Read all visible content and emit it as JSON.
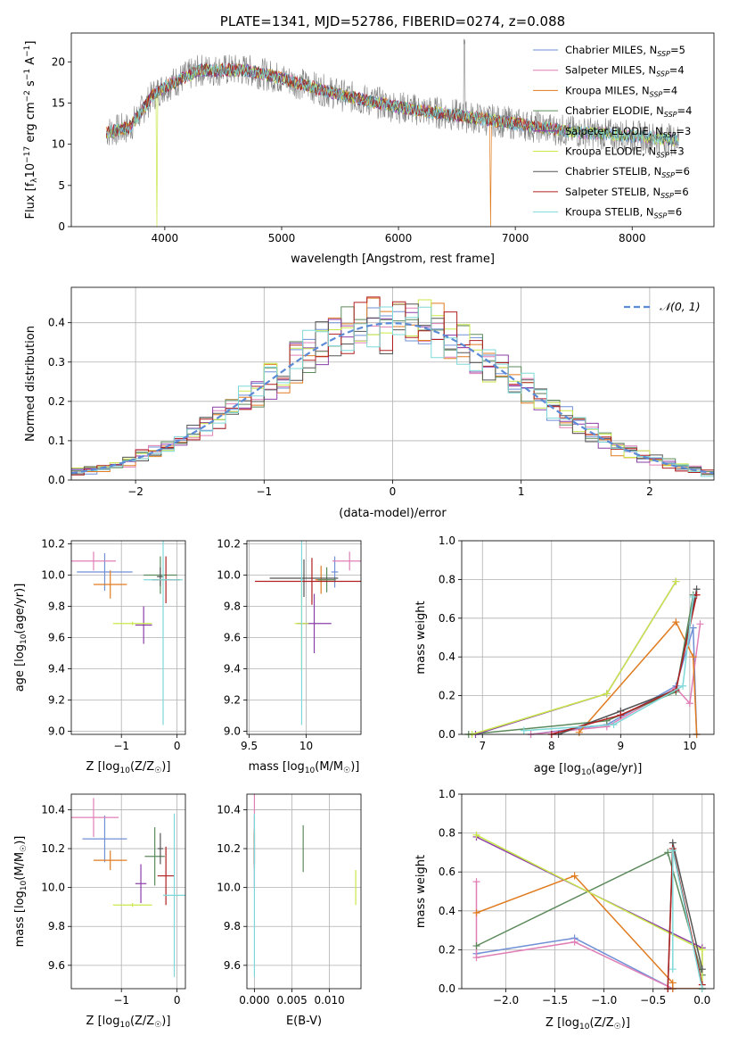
{
  "series_colors": [
    "#6f8fd6",
    "#e07fb6",
    "#e07b20",
    "#5c8a5c",
    "#8b3fa8",
    "#c8e84a",
    "#555555",
    "#b02020",
    "#7fd8d8"
  ],
  "chart_data": [
    {
      "id": "spectrum",
      "type": "line",
      "title": "PLATE=1341, MJD=52786, FIBERID=0274, z=0.088",
      "xlabel": "wavelength [Angstrom, rest frame]",
      "ylabel_parts": [
        "Flux [f",
        "λ",
        "10",
        "−17",
        " erg cm",
        "−2",
        " s",
        "−1",
        " A",
        "−1",
        "]"
      ],
      "xlim": [
        3200,
        8700
      ],
      "ylim": [
        0,
        23.5
      ],
      "xticks": [
        4000,
        5000,
        6000,
        7000,
        8000
      ],
      "yticks": [
        0,
        5,
        10,
        15,
        20
      ],
      "data_range": [
        3500,
        8400
      ],
      "grid": false,
      "legend_position": "top-right",
      "series": [
        {
          "label": "Chabrier MILES, N",
          "sub": "SSP",
          "suffix": "=5"
        },
        {
          "label": "Salpeter MILES, N",
          "sub": "SSP",
          "suffix": "=4"
        },
        {
          "label": "Kroupa MILES, N",
          "sub": "SSP",
          "suffix": "=4"
        },
        {
          "label": "Chabrier ELODIE, N",
          "sub": "SSP",
          "suffix": "=4"
        },
        {
          "label": "Salpeter ELODIE, N",
          "sub": "SSP",
          "suffix": "=3"
        },
        {
          "label": "Kroupa ELODIE, N",
          "sub": "SSP",
          "suffix": "=3"
        },
        {
          "label": "Chabrier STELIB, N",
          "sub": "SSP",
          "suffix": "=6"
        },
        {
          "label": "Salpeter STELIB, N",
          "sub": "SSP",
          "suffix": "=6"
        },
        {
          "label": "Kroupa STELIB, N",
          "sub": "SSP",
          "suffix": "=6"
        }
      ],
      "continuum": [
        [
          3500,
          11.5
        ],
        [
          3700,
          12.0
        ],
        [
          3900,
          16.0
        ],
        [
          4000,
          17.0
        ],
        [
          4300,
          19.0
        ],
        [
          4700,
          19.0
        ],
        [
          5000,
          18.0
        ],
        [
          5500,
          16.0
        ],
        [
          6000,
          14.5
        ],
        [
          6500,
          13.5
        ],
        [
          7000,
          12.5
        ],
        [
          7500,
          11.5
        ],
        [
          8000,
          11.0
        ],
        [
          8400,
          10.5
        ]
      ]
    },
    {
      "id": "residuals",
      "type": "line",
      "xlabel": "(data-model)/error",
      "ylabel": "Normed distribution",
      "xlim": [
        -2.5,
        2.5
      ],
      "ylim": [
        0,
        0.49
      ],
      "xticks": [
        -2,
        -1,
        0,
        1,
        2
      ],
      "yticks": [
        0.0,
        0.1,
        0.2,
        0.3,
        0.4
      ],
      "grid": true,
      "legend_position": "top-right",
      "legend": "𝒩(0, 1)",
      "bin_width": 0.1
    },
    {
      "id": "age-vs-z",
      "type": "scatter",
      "xlabel": "Z [log10(Z/Z☉)]",
      "xlabel_parts": [
        "Z [log",
        "10",
        "(Z/Z",
        "☉",
        ")]"
      ],
      "ylabel_parts": [
        "age  [log",
        "10",
        "(age/yr)]"
      ],
      "xlim": [
        -1.9,
        0.15
      ],
      "ylim": [
        8.98,
        10.22
      ],
      "xticks": [
        -1,
        0
      ],
      "yticks": [
        9.0,
        9.2,
        9.4,
        9.6,
        9.8,
        10.0,
        10.2
      ],
      "grid": true,
      "points": [
        {
          "x": -1.3,
          "y": 10.02,
          "xerr": 0.5,
          "yerr": 0.12
        },
        {
          "x": -1.5,
          "y": 10.09,
          "xerr": 0.4,
          "yerr": 0.06
        },
        {
          "x": -1.2,
          "y": 9.94,
          "xerr": 0.3,
          "yerr": 0.09
        },
        {
          "x": -0.3,
          "y": 10.0,
          "xerr": 0.3,
          "yerr": 0.12
        },
        {
          "x": -0.6,
          "y": 9.68,
          "xerr": 0.15,
          "yerr": 0.12
        },
        {
          "x": -0.8,
          "y": 9.69,
          "xerr": 0.35,
          "yerr": 0.01
        },
        {
          "x": -0.3,
          "y": 9.99,
          "xerr": 0.06,
          "yerr": 0.06
        },
        {
          "x": -0.2,
          "y": 9.97,
          "xerr": 0.25,
          "yerr": 0.15
        },
        {
          "x": -0.25,
          "y": 9.97,
          "xerr": 0.35,
          "yerr": 0.93
        }
      ]
    },
    {
      "id": "age-vs-mass",
      "type": "scatter",
      "xlabel_parts": [
        "mass [log",
        "10",
        "(M/M",
        "☉",
        ")]"
      ],
      "xlim": [
        9.48,
        10.48
      ],
      "ylim": [
        8.98,
        10.22
      ],
      "xticks": [
        9.5,
        10.0
      ],
      "yticks": [
        9.0,
        9.2,
        9.4,
        9.6,
        9.8,
        10.0,
        10.2
      ],
      "grid": true,
      "points": [
        {
          "x": 10.25,
          "y": 10.02,
          "xerr": 0.03,
          "yerr": 0.1
        },
        {
          "x": 10.38,
          "y": 10.09,
          "xerr": 0.15,
          "yerr": 0.06
        },
        {
          "x": 10.13,
          "y": 9.97,
          "xerr": 0.05,
          "yerr": 0.09
        },
        {
          "x": 10.18,
          "y": 9.97,
          "xerr": 0.08,
          "yerr": 0.08
        },
        {
          "x": 10.07,
          "y": 9.69,
          "xerr": 0.15,
          "yerr": 0.19
        },
        {
          "x": 9.96,
          "y": 9.69,
          "xerr": 0.06,
          "yerr": 0.3
        },
        {
          "x": 9.98,
          "y": 9.98,
          "xerr": 0.3,
          "yerr": 0.12
        },
        {
          "x": 10.05,
          "y": 9.96,
          "xerr": 0.5,
          "yerr": 0.15
        },
        {
          "x": 9.96,
          "y": 9.97,
          "xerr": 0.01,
          "yerr": 0.93
        }
      ]
    },
    {
      "id": "weight-vs-age",
      "type": "line",
      "xlabel_parts": [
        "age  [log",
        "10",
        "(age/yr)]"
      ],
      "ylabel": "mass weight",
      "xlim": [
        6.7,
        10.35
      ],
      "ylim": [
        0,
        1.0
      ],
      "xticks": [
        7,
        8,
        9,
        10
      ],
      "yticks": [
        0.0,
        0.2,
        0.4,
        0.6,
        0.8,
        1.0
      ],
      "grid": true,
      "series": [
        {
          "x": [
            7.7,
            8.8,
            9.8,
            10.05,
            10.1
          ],
          "y": [
            0.0,
            0.05,
            0.25,
            0.55,
            0.0
          ]
        },
        {
          "x": [
            7.7,
            8.8,
            9.8,
            10.0,
            10.15
          ],
          "y": [
            0.0,
            0.04,
            0.24,
            0.16,
            0.57
          ]
        },
        {
          "x": [
            8.4,
            9.8,
            10.05,
            10.1
          ],
          "y": [
            0.01,
            0.58,
            0.4,
            0.0
          ]
        },
        {
          "x": [
            6.8,
            8.8,
            9.8,
            10.05
          ],
          "y": [
            0.0,
            0.07,
            0.22,
            0.72
          ]
        },
        {
          "x": [
            6.9,
            8.8,
            9.8
          ],
          "y": [
            0.0,
            0.21,
            0.79
          ]
        },
        {
          "x": [
            6.85,
            8.8,
            9.8
          ],
          "y": [
            0.0,
            0.21,
            0.79
          ]
        },
        {
          "x": [
            8.1,
            9.0,
            9.8,
            10.1
          ],
          "y": [
            0.0,
            0.12,
            0.23,
            0.75
          ]
        },
        {
          "x": [
            8.0,
            9.0,
            9.8,
            10.1
          ],
          "y": [
            0.0,
            0.1,
            0.23,
            0.72
          ]
        },
        {
          "x": [
            7.6,
            8.9,
            9.9,
            10.05
          ],
          "y": [
            0.02,
            0.05,
            0.25,
            0.71
          ]
        }
      ]
    },
    {
      "id": "mass-vs-z",
      "type": "scatter",
      "xlabel_parts": [
        "Z [log",
        "10",
        "(Z/Z",
        "☉",
        ")]"
      ],
      "ylabel_parts": [
        "mass [log",
        "10",
        "(M/M",
        "☉",
        ")]"
      ],
      "xlim": [
        -1.9,
        0.15
      ],
      "ylim": [
        9.48,
        10.48
      ],
      "xticks": [
        -1,
        0
      ],
      "yticks": [
        9.6,
        9.8,
        10.0,
        10.2,
        10.4
      ],
      "grid": true,
      "points": [
        {
          "x": -1.3,
          "y": 10.25,
          "xerr": 0.4,
          "yerr": 0.12
        },
        {
          "x": -1.5,
          "y": 10.36,
          "xerr": 0.45,
          "yerr": 0.1
        },
        {
          "x": -1.2,
          "y": 10.14,
          "xerr": 0.3,
          "yerr": 0.05
        },
        {
          "x": -0.4,
          "y": 10.16,
          "xerr": 0.18,
          "yerr": 0.15
        },
        {
          "x": -0.65,
          "y": 10.02,
          "xerr": 0.1,
          "yerr": 0.1
        },
        {
          "x": -0.8,
          "y": 9.91,
          "xerr": 0.35,
          "yerr": 0.01
        },
        {
          "x": -0.3,
          "y": 10.2,
          "xerr": 0.05,
          "yerr": 0.08
        },
        {
          "x": -0.2,
          "y": 10.06,
          "xerr": 0.15,
          "yerr": 0.15
        },
        {
          "x": -0.05,
          "y": 9.96,
          "xerr": 0.2,
          "yerr": 0.42
        }
      ]
    },
    {
      "id": "mass-vs-ebv",
      "type": "scatter",
      "xlabel": "E(B-V)",
      "xlim": [
        -0.001,
        0.0142
      ],
      "ylim": [
        9.48,
        10.48
      ],
      "xticks": [
        0.0,
        0.005,
        0.01
      ],
      "tick_labels": [
        "0.000",
        "0.005",
        "0.010"
      ],
      "yticks": [
        9.6,
        9.8,
        10.0,
        10.2,
        10.4
      ],
      "grid": true,
      "points": [
        {
          "x": 0.0,
          "y": 10.25,
          "yerr": 0.12
        },
        {
          "x": 0.0,
          "y": 10.36,
          "yerr": 0.12
        },
        {
          "x": 0.0,
          "y": 10.2,
          "yerr": 0.08
        },
        {
          "x": 0.0065,
          "y": 10.2,
          "yerr": 0.12
        },
        {
          "x": 0.0,
          "y": 10.1,
          "yerr": 0.1
        },
        {
          "x": 0.0135,
          "y": 10.0,
          "yerr": 0.09
        },
        {
          "x": 0.0,
          "y": 10.2,
          "yerr": 0.08
        },
        {
          "x": 0.0,
          "y": 10.2,
          "yerr": 0.1
        },
        {
          "x": 0.0,
          "y": 9.96,
          "yerr": 0.42
        }
      ]
    },
    {
      "id": "weight-vs-z",
      "type": "line",
      "xlabel_parts": [
        "Z [log",
        "10",
        "(Z/Z",
        "☉",
        ")]"
      ],
      "ylabel": "mass weight",
      "xlim": [
        -2.45,
        0.12
      ],
      "ylim": [
        0,
        1.0
      ],
      "xticks": [
        -2.0,
        -1.5,
        -1.0,
        -0.5,
        0.0
      ],
      "tick_labels": [
        "−2.0",
        "−1.5",
        "−1.0",
        "−0.5",
        "0.0"
      ],
      "yticks": [
        0.0,
        0.2,
        0.4,
        0.6,
        0.8,
        1.0
      ],
      "grid": true,
      "series": [
        {
          "x": [
            -2.3,
            -1.3,
            -0.3,
            0.0
          ],
          "y": [
            0.18,
            0.26,
            0.0,
            0.0
          ]
        },
        {
          "x": [
            -2.3,
            -2.3,
            -1.3,
            -0.3,
            0.0
          ],
          "y": [
            0.55,
            0.16,
            0.24,
            0.0,
            0.0
          ]
        },
        {
          "x": [
            -2.3,
            -1.3,
            -0.3,
            -0.3,
            0.0
          ],
          "y": [
            0.39,
            0.58,
            0.03,
            0.0,
            0.0
          ]
        },
        {
          "x": [
            -2.3,
            -0.35,
            0.0,
            0.0
          ],
          "y": [
            0.22,
            0.7,
            0.07,
            0.0
          ]
        },
        {
          "x": [
            -2.3,
            0.0,
            0.0
          ],
          "y": [
            0.78,
            0.21,
            0.0
          ]
        },
        {
          "x": [
            -2.3,
            0.0,
            0.0
          ],
          "y": [
            0.79,
            0.2,
            0.0
          ]
        },
        {
          "x": [
            -0.35,
            -0.3,
            0.0
          ],
          "y": [
            0.0,
            0.75,
            0.1
          ]
        },
        {
          "x": [
            -0.35,
            -0.3,
            0.0
          ],
          "y": [
            0.0,
            0.72,
            0.02
          ]
        },
        {
          "x": [
            -0.3,
            -0.3,
            0.0
          ],
          "y": [
            0.1,
            0.71,
            0.0
          ]
        }
      ]
    }
  ]
}
